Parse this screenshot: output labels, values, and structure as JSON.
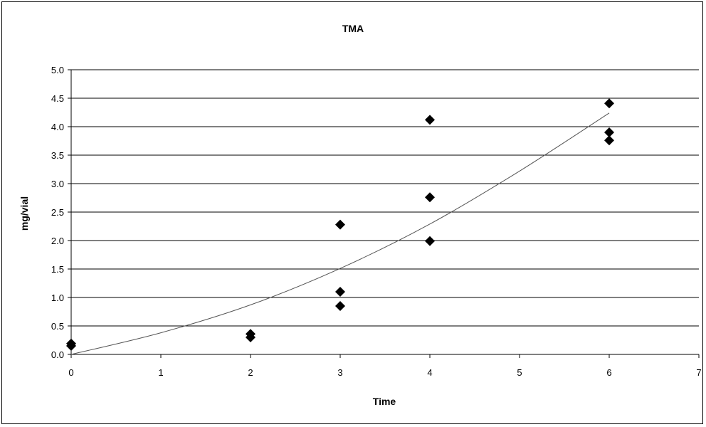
{
  "chart_data": {
    "type": "scatter",
    "title": "TMA",
    "xlabel": "Time",
    "ylabel": "mg/vial",
    "xlim": [
      0,
      7
    ],
    "ylim": [
      0,
      5
    ],
    "x_ticks": [
      "0",
      "1",
      "2",
      "3",
      "4",
      "5",
      "6",
      "7"
    ],
    "y_ticks": [
      "0.0",
      "0.5",
      "1.0",
      "1.5",
      "2.0",
      "2.5",
      "3.0",
      "3.5",
      "4.0",
      "4.5",
      "5.0"
    ],
    "grid": "horizontal",
    "marker": "diamond",
    "marker_color": "#000000",
    "points": [
      {
        "x": 0,
        "y": 0.15
      },
      {
        "x": 0,
        "y": 0.19
      },
      {
        "x": 2,
        "y": 0.3
      },
      {
        "x": 2,
        "y": 0.36
      },
      {
        "x": 3,
        "y": 2.28
      },
      {
        "x": 3,
        "y": 1.1
      },
      {
        "x": 3,
        "y": 0.85
      },
      {
        "x": 4,
        "y": 4.12
      },
      {
        "x": 4,
        "y": 2.76
      },
      {
        "x": 4,
        "y": 1.99
      },
      {
        "x": 6,
        "y": 4.41
      },
      {
        "x": 6,
        "y": 3.9
      },
      {
        "x": 6,
        "y": 3.76
      }
    ],
    "trendline": {
      "type": "polynomial",
      "points": [
        {
          "x": 0,
          "y": 0.0
        },
        {
          "x": 1,
          "y": 0.38
        },
        {
          "x": 2,
          "y": 0.87
        },
        {
          "x": 3,
          "y": 1.51
        },
        {
          "x": 4,
          "y": 2.29
        },
        {
          "x": 5,
          "y": 3.22
        },
        {
          "x": 6,
          "y": 4.24
        }
      ]
    }
  }
}
